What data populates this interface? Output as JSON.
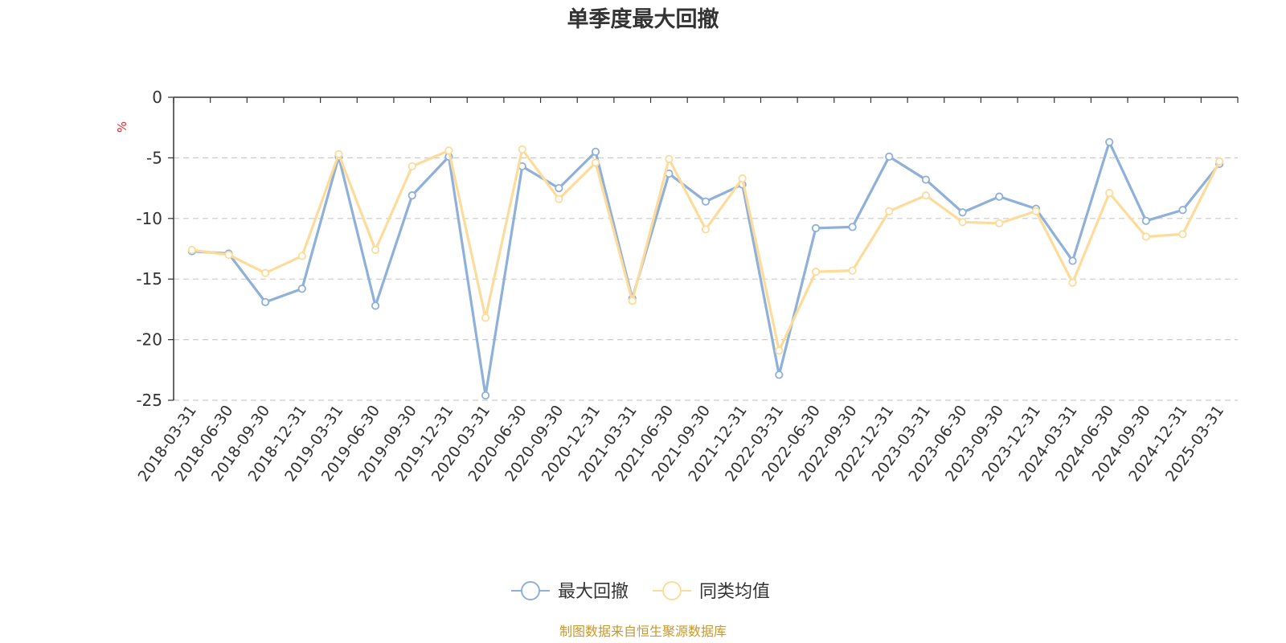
{
  "chart_data": {
    "type": "line",
    "title": "单季度最大回撤",
    "ylabel": "%",
    "ylim": [
      -25,
      0
    ],
    "yticks": [
      0,
      -5,
      -10,
      -15,
      -20,
      -25
    ],
    "grid": true,
    "legend_position": "bottom",
    "categories": [
      "2018-03-31",
      "2018-06-30",
      "2018-09-30",
      "2018-12-31",
      "2019-03-31",
      "2019-06-30",
      "2019-09-30",
      "2019-12-31",
      "2020-03-31",
      "2020-06-30",
      "2020-09-30",
      "2020-12-31",
      "2021-03-31",
      "2021-06-30",
      "2021-09-30",
      "2021-12-31",
      "2022-03-31",
      "2022-06-30",
      "2022-09-30",
      "2022-12-31",
      "2023-03-31",
      "2023-06-30",
      "2023-09-30",
      "2023-12-31",
      "2024-03-31",
      "2024-06-30",
      "2024-09-30",
      "2024-12-31",
      "2025-03-31"
    ],
    "series": [
      {
        "name": "最大回撤",
        "color": "#8eb0d9",
        "values": [
          -12.7,
          -12.9,
          -16.9,
          -15.8,
          -4.9,
          -17.2,
          -8.1,
          -4.9,
          -24.6,
          -5.7,
          -7.5,
          -4.5,
          -16.6,
          -6.3,
          -8.6,
          -7.2,
          -22.9,
          -10.8,
          -10.7,
          -4.9,
          -6.8,
          -9.5,
          -8.2,
          -9.2,
          -13.5,
          -3.7,
          -10.2,
          -9.3,
          -5.5
        ]
      },
      {
        "name": "同类均值",
        "color": "#fddc9b",
        "values": [
          -12.6,
          -13.0,
          -14.5,
          -13.1,
          -4.7,
          -12.6,
          -5.7,
          -4.4,
          -18.2,
          -4.3,
          -8.4,
          -5.4,
          -16.8,
          -5.1,
          -10.9,
          -6.7,
          -20.9,
          -14.4,
          -14.3,
          -9.4,
          -8.1,
          -10.3,
          -10.4,
          -9.4,
          -15.3,
          -7.9,
          -11.5,
          -11.3,
          -5.3
        ]
      }
    ],
    "source_note": "制图数据来自恒生聚源数据库"
  }
}
